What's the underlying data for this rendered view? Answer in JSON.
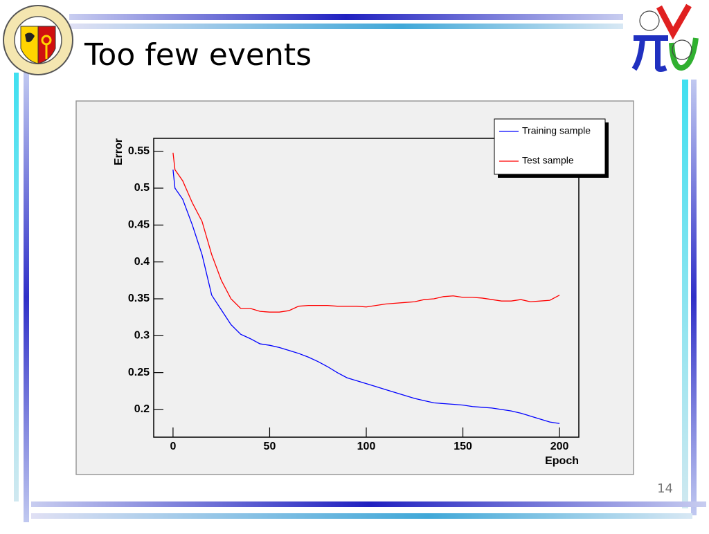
{
  "slide": {
    "title": "Too few events",
    "page_number": 14
  },
  "chart_data": {
    "type": "line",
    "xlabel": "Epoch",
    "ylabel": "Error",
    "x": [
      0,
      1,
      5,
      10,
      15,
      20,
      25,
      30,
      35,
      40,
      45,
      50,
      55,
      60,
      65,
      70,
      75,
      80,
      85,
      90,
      95,
      100,
      105,
      110,
      115,
      120,
      125,
      130,
      135,
      140,
      145,
      150,
      155,
      160,
      165,
      170,
      175,
      180,
      185,
      190,
      195,
      200
    ],
    "series": [
      {
        "name": "Training sample",
        "color": "#0000ff",
        "values": [
          0.525,
          0.5,
          0.485,
          0.45,
          0.41,
          0.355,
          0.335,
          0.315,
          0.302,
          0.296,
          0.289,
          0.287,
          0.284,
          0.28,
          0.276,
          0.271,
          0.265,
          0.258,
          0.25,
          0.243,
          0.239,
          0.235,
          0.231,
          0.227,
          0.223,
          0.219,
          0.215,
          0.212,
          0.209,
          0.208,
          0.207,
          0.206,
          0.204,
          0.203,
          0.202,
          0.2,
          0.198,
          0.195,
          0.191,
          0.187,
          0.183,
          0.181
        ]
      },
      {
        "name": "Test sample",
        "color": "#ff0000",
        "values": [
          0.548,
          0.525,
          0.51,
          0.48,
          0.455,
          0.41,
          0.375,
          0.35,
          0.337,
          0.337,
          0.333,
          0.332,
          0.332,
          0.334,
          0.34,
          0.341,
          0.341,
          0.341,
          0.34,
          0.34,
          0.34,
          0.339,
          0.341,
          0.343,
          0.344,
          0.345,
          0.346,
          0.349,
          0.35,
          0.353,
          0.354,
          0.352,
          0.352,
          0.351,
          0.349,
          0.347,
          0.347,
          0.349,
          0.346,
          0.347,
          0.348,
          0.355
        ]
      }
    ],
    "xlim": [
      -10,
      210
    ],
    "ylim": [
      0.1625,
      0.5675
    ],
    "xticks": [
      0,
      50,
      100,
      150,
      200
    ],
    "yticks": [
      0.2,
      0.25,
      0.3,
      0.35,
      0.4,
      0.45,
      0.5,
      0.55
    ],
    "legend": "top-right",
    "grid": false
  }
}
